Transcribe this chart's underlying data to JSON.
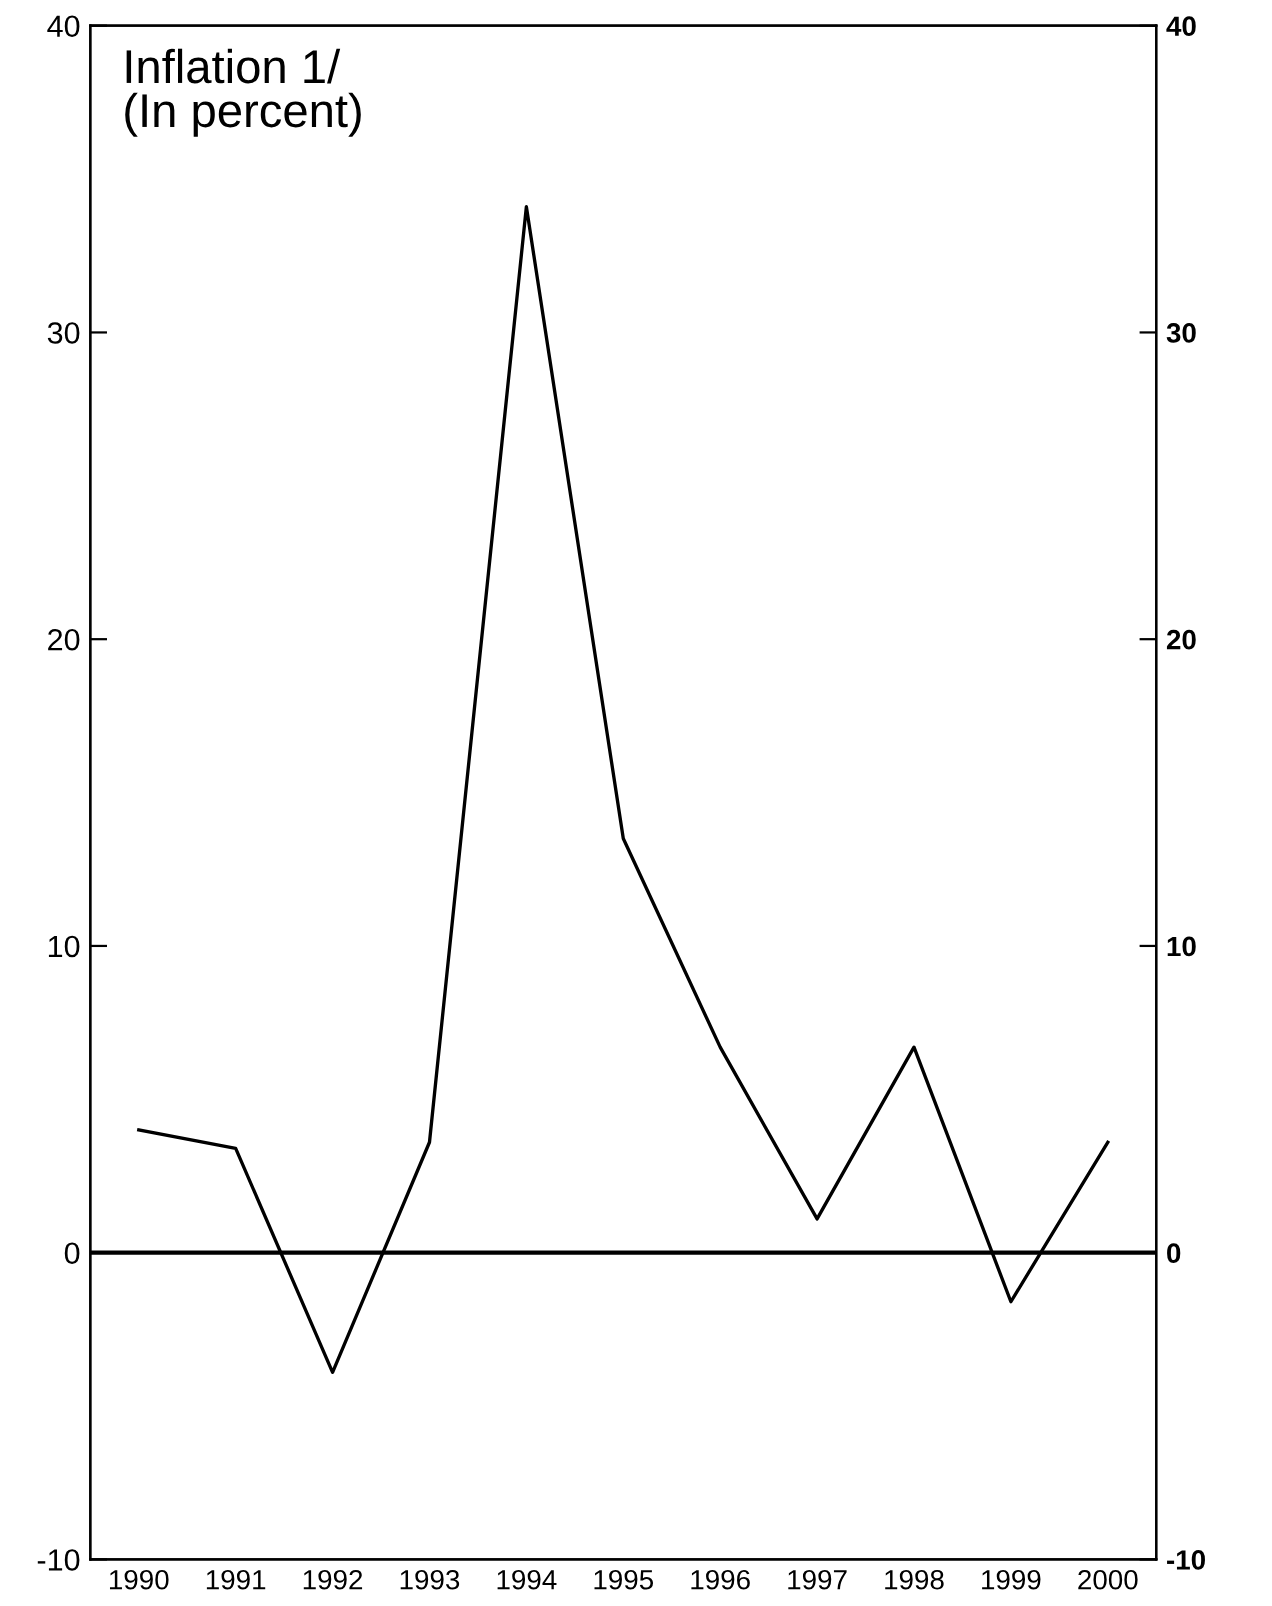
{
  "chart_data": {
    "type": "line",
    "title": "Inflation 1/\n(In percent)",
    "categories": [
      "1990",
      "1991",
      "1992",
      "1993",
      "1994",
      "1995",
      "1996",
      "1997",
      "1998",
      "1999",
      "2000"
    ],
    "series": [
      {
        "color": "#000000",
        "values": [
          4.0,
          3.4,
          -3.9,
          3.6,
          34.1,
          13.5,
          6.7,
          1.1,
          6.7,
          -1.6,
          3.6
        ]
      }
    ],
    "ylim": [
      -10,
      40
    ],
    "yticks": [
      -10,
      0,
      10,
      20,
      30,
      40
    ],
    "y2lim": [
      -10,
      40
    ],
    "y2ticks": [
      -10,
      0,
      10,
      20,
      30,
      40
    ],
    "ref_lines": [
      {
        "axis": "y",
        "value": 0,
        "color": "#000000"
      }
    ],
    "grid": false,
    "legend": false,
    "marker": "none",
    "line_style": "solid"
  }
}
